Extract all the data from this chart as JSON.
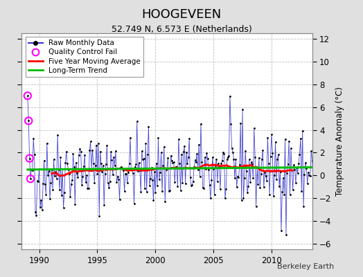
{
  "title": "HOOGEVEEN",
  "subtitle": "52.749 N, 6.573 E (Netherlands)",
  "ylabel": "Temperature Anomaly (°C)",
  "credit": "Berkeley Earth",
  "xlim": [
    1988.5,
    2013.5
  ],
  "ylim": [
    -6.5,
    12.5
  ],
  "yticks": [
    -6,
    -4,
    -2,
    0,
    2,
    4,
    6,
    8,
    10,
    12
  ],
  "xticks": [
    1990,
    1995,
    2000,
    2005,
    2010
  ],
  "bg_color": "#e0e0e0",
  "plot_bg_color": "#ffffff",
  "grid_color": "#c0c0c0",
  "raw_line_color": "#3333cc",
  "raw_marker_color": "#000000",
  "qc_color": "#ff00ff",
  "moving_avg_color": "#ff0000",
  "trend_color": "#00bb00",
  "seed": 42,
  "start_year": 1989.0,
  "n_months": 300
}
